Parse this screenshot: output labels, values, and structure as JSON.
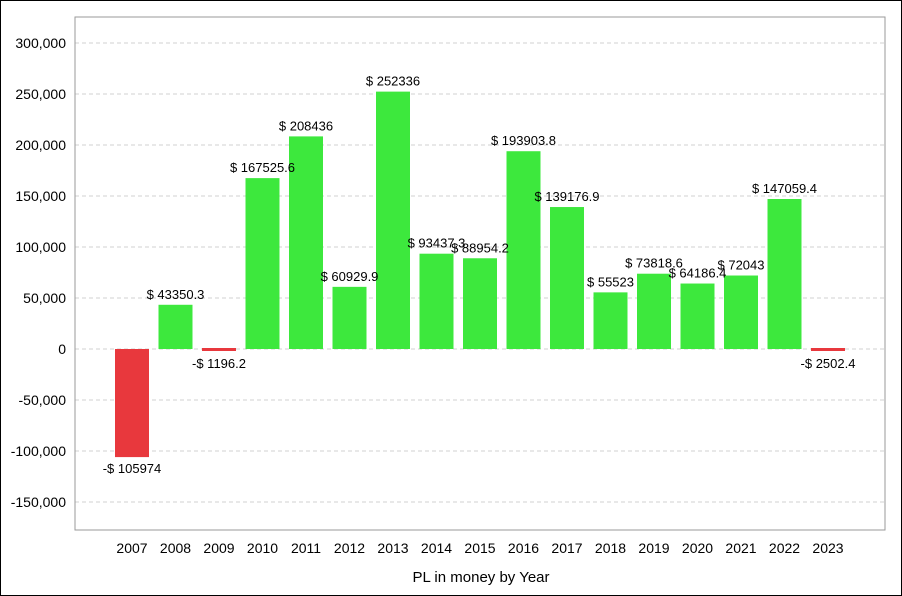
{
  "chart_data": {
    "type": "bar",
    "title": "",
    "xlabel": "PL in money by Year",
    "ylabel": "",
    "ylim": [
      -175000,
      325000
    ],
    "yticks": [
      300000,
      250000,
      200000,
      150000,
      100000,
      50000,
      0,
      -50000,
      -100000,
      -150000
    ],
    "ytick_labels": [
      "300,000",
      "250,000",
      "200,000",
      "150,000",
      "100,000",
      "50,000",
      "0",
      "-50,000",
      "-100,000",
      "-150,000"
    ],
    "grid": true,
    "legend": "none",
    "colors": {
      "positive": "#3de83d",
      "negative": "#e8383d"
    },
    "categories": [
      "2007",
      "2008",
      "2009",
      "2010",
      "2011",
      "2012",
      "2013",
      "2014",
      "2015",
      "2016",
      "2017",
      "2018",
      "2019",
      "2020",
      "2021",
      "2022",
      "2023"
    ],
    "values": [
      -105974,
      43350.3,
      -1196.2,
      167525.6,
      208436,
      60929.9,
      252336,
      93437.3,
      88954.2,
      193903.8,
      139176.9,
      55523,
      73818.6,
      64186.4,
      72043,
      147059.4,
      -2502.4
    ],
    "labels": [
      "-$ 105974",
      "$ 43350.3",
      "-$ 1196.2",
      "$ 167525.6",
      "$ 208436",
      "$ 60929.9",
      "$ 252336",
      "$ 93437.3",
      "$ 88954.2",
      "$ 193903.8",
      "$ 139176.9",
      "$ 55523",
      "$ 73818.6",
      "$ 64186.4",
      "$ 72043",
      "$ 147059.4",
      "-$ 2502.4"
    ]
  }
}
